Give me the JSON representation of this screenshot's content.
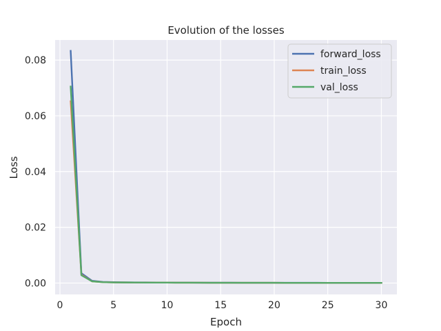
{
  "chart_data": {
    "type": "line",
    "title": "Evolution of the losses",
    "xlabel": "Epoch",
    "ylabel": "Loss",
    "xlim": [
      -0.45,
      31.45
    ],
    "ylim": [
      -0.0041,
      0.0872
    ],
    "xticks": [
      0,
      5,
      10,
      15,
      20,
      25,
      30
    ],
    "xtick_labels": [
      "0",
      "5",
      "10",
      "15",
      "20",
      "25",
      "30"
    ],
    "yticks": [
      0.0,
      0.02,
      0.04,
      0.06,
      0.08
    ],
    "ytick_labels": [
      "0.00",
      "0.02",
      "0.04",
      "0.06",
      "0.08"
    ],
    "grid": true,
    "legend_position": "top-right",
    "x": [
      1,
      2,
      3,
      4,
      5,
      6,
      7,
      8,
      9,
      10,
      11,
      12,
      13,
      14,
      15,
      16,
      17,
      18,
      19,
      20,
      21,
      22,
      23,
      24,
      25,
      26,
      27,
      28,
      29,
      30
    ],
    "series": [
      {
        "name": "forward_loss",
        "color": "#4c72b0",
        "values": [
          0.0833,
          0.0035,
          0.0008,
          0.0004,
          0.0003,
          0.00025,
          0.0002,
          0.0002,
          0.00018,
          0.00016,
          0.00015,
          0.00014,
          0.00013,
          0.00012,
          0.00012,
          0.00011,
          0.0001,
          0.0001,
          0.0001,
          9e-05,
          9e-05,
          8e-05,
          8e-05,
          8e-05,
          7e-05,
          7e-05,
          7e-05,
          6e-05,
          6e-05,
          6e-05
        ]
      },
      {
        "name": "train_loss",
        "color": "#dd8452",
        "values": [
          0.0652,
          0.003,
          0.0006,
          0.0003,
          0.00022,
          0.0002,
          0.00018,
          0.00016,
          0.00015,
          0.00014,
          0.00013,
          0.00012,
          0.00011,
          0.0001,
          0.0001,
          9e-05,
          9e-05,
          8e-05,
          8e-05,
          8e-05,
          7e-05,
          7e-05,
          7e-05,
          6e-05,
          6e-05,
          6e-05,
          6e-05,
          5e-05,
          5e-05,
          5e-05
        ]
      },
      {
        "name": "val_loss",
        "color": "#55a868",
        "values": [
          0.0705,
          0.0028,
          0.0006,
          0.0003,
          0.00022,
          0.0002,
          0.00018,
          0.00016,
          0.00015,
          0.00014,
          0.00013,
          0.00012,
          0.00011,
          0.0001,
          0.0001,
          9e-05,
          9e-05,
          8e-05,
          8e-05,
          8e-05,
          7e-05,
          7e-05,
          7e-05,
          6e-05,
          6e-05,
          6e-05,
          6e-05,
          5e-05,
          5e-05,
          5e-05
        ]
      }
    ]
  }
}
